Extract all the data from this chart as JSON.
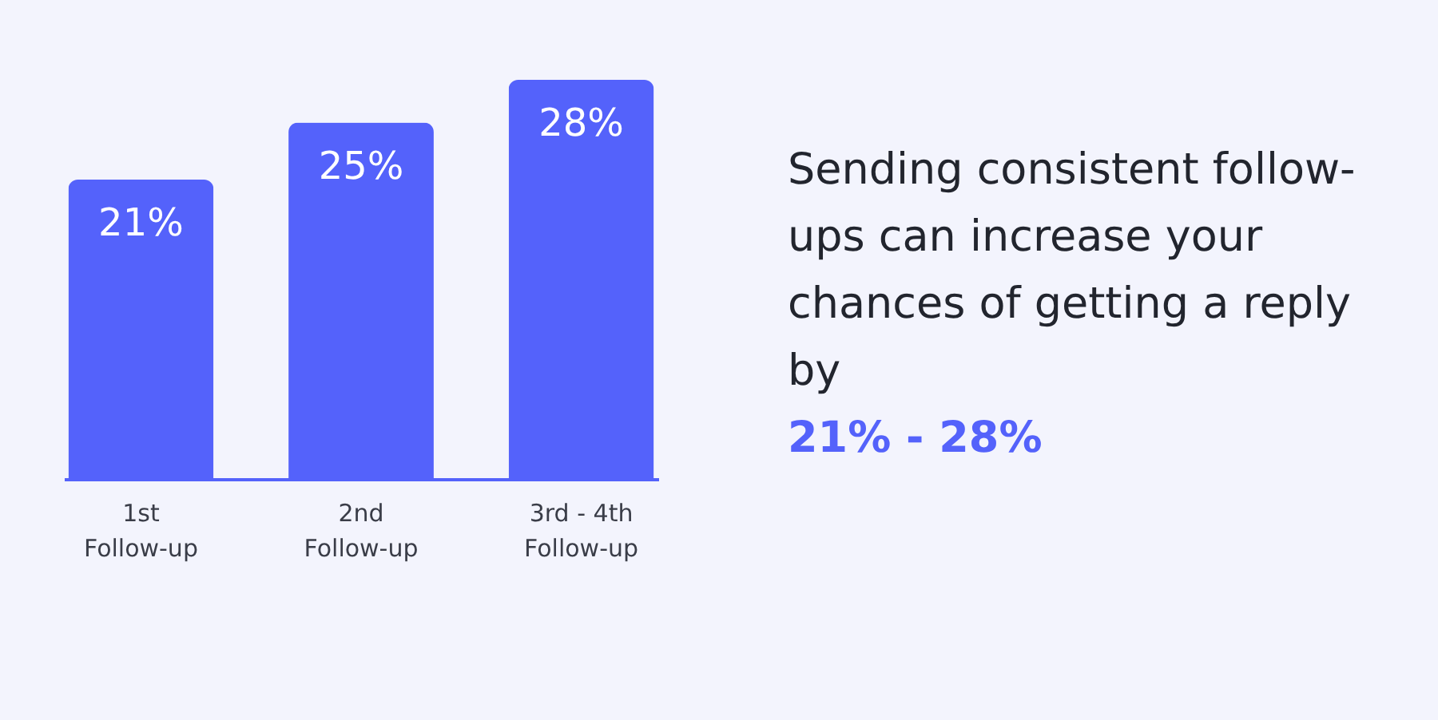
{
  "chart_data": {
    "type": "bar",
    "categories": [
      "1st Follow-up",
      "2nd Follow-up",
      "3rd - 4th Follow-up"
    ],
    "values": [
      21,
      25,
      28
    ],
    "value_labels": [
      "21%",
      "25%",
      "28%"
    ],
    "color": "#5462fb",
    "annotations": [
      "Sending consistent follow-ups can increase your chances of getting a reply by",
      "21% - 28%"
    ]
  }
}
